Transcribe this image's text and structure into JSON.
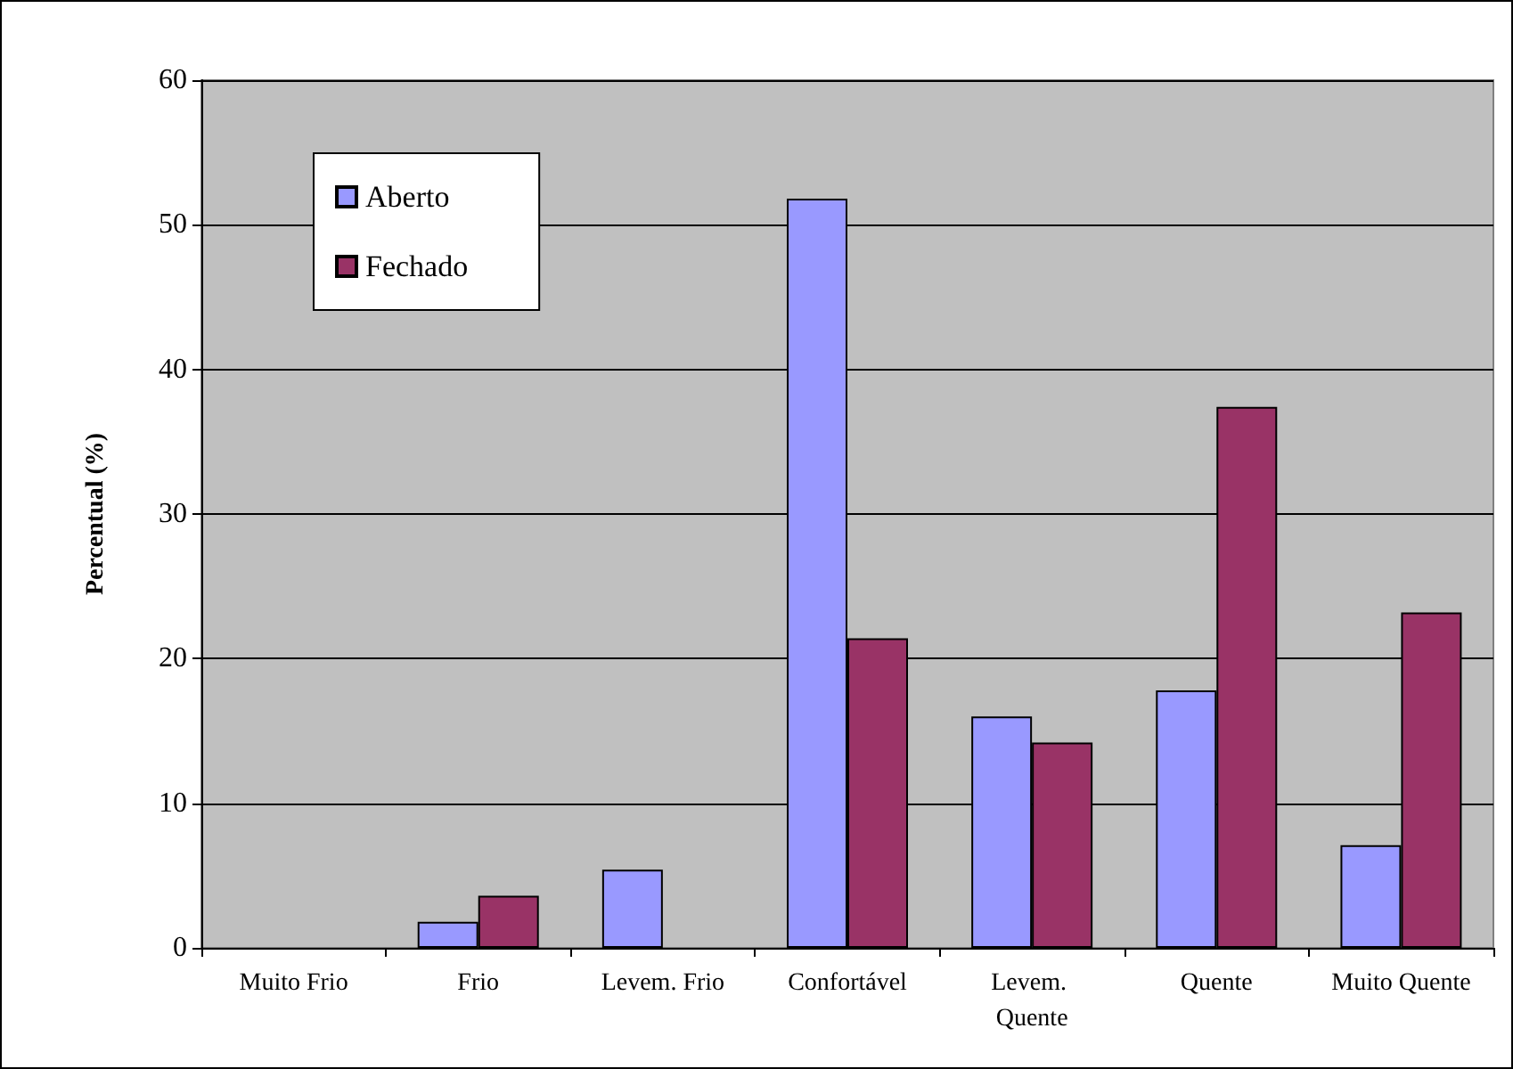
{
  "chart_data": {
    "type": "bar",
    "ylabel": "Percentual (%)",
    "categories": [
      "Muito Frio",
      "Frio",
      "Levem. Frio",
      "Confortável",
      "Levem. Quente",
      "Quente",
      "Muito Quente"
    ],
    "series": [
      {
        "name": "Aberto",
        "color": "#9999ff",
        "values": [
          0,
          1.8,
          5.4,
          51.8,
          16.0,
          17.8,
          7.1
        ]
      },
      {
        "name": "Fechado",
        "color": "#993366",
        "values": [
          0,
          3.6,
          0,
          21.4,
          14.2,
          37.4,
          23.2
        ]
      }
    ],
    "ylim": [
      0,
      60
    ],
    "yticks": [
      0,
      10,
      20,
      30,
      40,
      50,
      60
    ],
    "grid": "y",
    "legend": "top left"
  }
}
